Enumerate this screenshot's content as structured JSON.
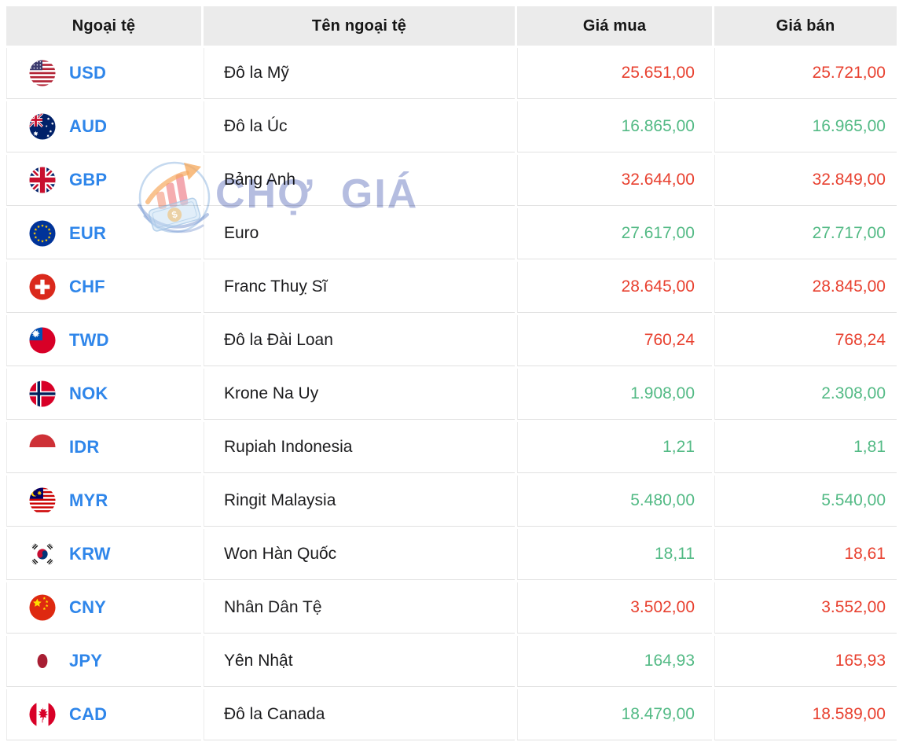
{
  "header": {
    "cols": [
      "Ngoại tệ",
      "Tên ngoại tệ",
      "Giá mua",
      "Giá bán"
    ]
  },
  "watermark": {
    "brand": "CHỢ GIÁ"
  },
  "colors": {
    "price_red": "#E8402F",
    "price_green": "#53BA85",
    "currency_code_blue": "#2F86EA",
    "header_bg": "#EBEBEB"
  },
  "rows": [
    {
      "code": "USD",
      "flag_icon": "usd-flag-icon",
      "name": "Đô la Mỹ",
      "buy": "25.651,00",
      "buy_color": "red",
      "sell": "25.721,00",
      "sell_color": "red"
    },
    {
      "code": "AUD",
      "flag_icon": "aud-flag-icon",
      "name": "Đô la Úc",
      "buy": "16.865,00",
      "buy_color": "green",
      "sell": "16.965,00",
      "sell_color": "green"
    },
    {
      "code": "GBP",
      "flag_icon": "gbp-flag-icon",
      "name": "Bảng Anh",
      "buy": "32.644,00",
      "buy_color": "red",
      "sell": "32.849,00",
      "sell_color": "red"
    },
    {
      "code": "EUR",
      "flag_icon": "eur-flag-icon",
      "name": "Euro",
      "buy": "27.617,00",
      "buy_color": "green",
      "sell": "27.717,00",
      "sell_color": "green"
    },
    {
      "code": "CHF",
      "flag_icon": "chf-flag-icon",
      "name": "Franc Thuỵ Sĩ",
      "buy": "28.645,00",
      "buy_color": "red",
      "sell": "28.845,00",
      "sell_color": "red"
    },
    {
      "code": "TWD",
      "flag_icon": "twd-flag-icon",
      "name": "Đô la Đài Loan",
      "buy": "760,24",
      "buy_color": "red",
      "sell": "768,24",
      "sell_color": "red"
    },
    {
      "code": "NOK",
      "flag_icon": "nok-flag-icon",
      "name": "Krone Na Uy",
      "buy": "1.908,00",
      "buy_color": "green",
      "sell": "2.308,00",
      "sell_color": "green"
    },
    {
      "code": "IDR",
      "flag_icon": "idr-flag-icon",
      "name": "Rupiah Indonesia",
      "buy": "1,21",
      "buy_color": "green",
      "sell": "1,81",
      "sell_color": "green"
    },
    {
      "code": "MYR",
      "flag_icon": "myr-flag-icon",
      "name": "Ringit Malaysia",
      "buy": "5.480,00",
      "buy_color": "green",
      "sell": "5.540,00",
      "sell_color": "green"
    },
    {
      "code": "KRW",
      "flag_icon": "krw-flag-icon",
      "name": "Won Hàn Quốc",
      "buy": "18,11",
      "buy_color": "green",
      "sell": "18,61",
      "sell_color": "red"
    },
    {
      "code": "CNY",
      "flag_icon": "cny-flag-icon",
      "name": "Nhân Dân Tệ",
      "buy": "3.502,00",
      "buy_color": "red",
      "sell": "3.552,00",
      "sell_color": "red"
    },
    {
      "code": "JPY",
      "flag_icon": "jpy-flag-icon",
      "name": "Yên Nhật",
      "buy": "164,93",
      "buy_color": "green",
      "sell": "165,93",
      "sell_color": "red"
    },
    {
      "code": "CAD",
      "flag_icon": "cad-flag-icon",
      "name": "Đô la Canada",
      "buy": "18.479,00",
      "buy_color": "green",
      "sell": "18.589,00",
      "sell_color": "red"
    }
  ]
}
